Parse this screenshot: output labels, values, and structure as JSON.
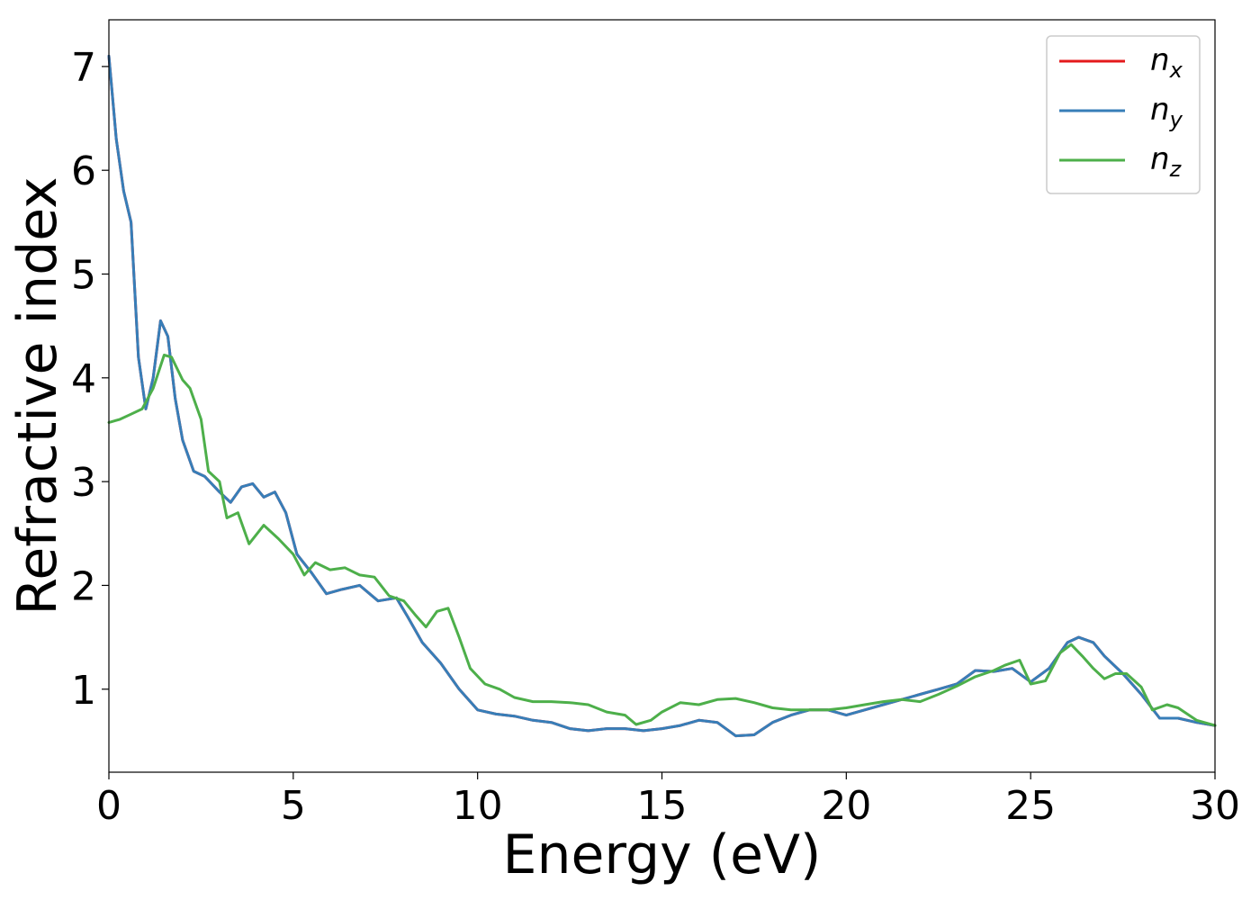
{
  "chart_data": {
    "type": "line",
    "title": "",
    "xlabel": "Energy (eV)",
    "ylabel": "Refractive index",
    "xlim": [
      0,
      30
    ],
    "ylim": [
      0.2,
      7.45
    ],
    "xticks": [
      0,
      5,
      10,
      15,
      20,
      25,
      30
    ],
    "yticks": [
      1,
      2,
      3,
      4,
      5,
      6,
      7
    ],
    "grid": false,
    "legend_position": "top-right",
    "series": [
      {
        "name": "n_x",
        "legend_main": "n",
        "legend_sub": "x",
        "color": "#e41a1c",
        "x": [
          0,
          0.2,
          0.4,
          0.6,
          0.8,
          1.0,
          1.2,
          1.4,
          1.6,
          1.8,
          2.0,
          2.3,
          2.6,
          3.0,
          3.3,
          3.6,
          3.9,
          4.2,
          4.5,
          4.8,
          5.1,
          5.5,
          5.9,
          6.3,
          6.8,
          7.3,
          7.8,
          8.1,
          8.5,
          9.0,
          9.5,
          10.0,
          10.5,
          11.0,
          11.5,
          12.0,
          12.5,
          13.0,
          13.5,
          14.0,
          14.5,
          15.0,
          15.5,
          16.0,
          16.5,
          17.0,
          17.5,
          18.0,
          18.5,
          19.0,
          19.5,
          20.0,
          20.5,
          21.0,
          21.5,
          22.0,
          22.5,
          23.0,
          23.5,
          24.0,
          24.5,
          25.0,
          25.5,
          26.0,
          26.3,
          26.7,
          27.0,
          27.5,
          28.0,
          28.5,
          29.0,
          29.5,
          30.0
        ],
        "y": [
          7.1,
          6.3,
          5.8,
          5.5,
          4.2,
          3.7,
          4.0,
          4.55,
          4.4,
          3.8,
          3.4,
          3.1,
          3.05,
          2.9,
          2.8,
          2.95,
          2.98,
          2.85,
          2.9,
          2.7,
          2.3,
          2.12,
          1.92,
          1.96,
          2.0,
          1.85,
          1.88,
          1.7,
          1.45,
          1.25,
          1.0,
          0.8,
          0.76,
          0.74,
          0.7,
          0.68,
          0.62,
          0.6,
          0.62,
          0.62,
          0.6,
          0.62,
          0.65,
          0.7,
          0.68,
          0.55,
          0.56,
          0.68,
          0.75,
          0.8,
          0.8,
          0.75,
          0.8,
          0.85,
          0.9,
          0.95,
          1.0,
          1.05,
          1.18,
          1.17,
          1.2,
          1.07,
          1.2,
          1.45,
          1.5,
          1.45,
          1.32,
          1.15,
          0.95,
          0.72,
          0.72,
          0.68,
          0.65
        ]
      },
      {
        "name": "n_y",
        "legend_main": "n",
        "legend_sub": "y",
        "color": "#377eb8",
        "x": [
          0,
          0.2,
          0.4,
          0.6,
          0.8,
          1.0,
          1.2,
          1.4,
          1.6,
          1.8,
          2.0,
          2.3,
          2.6,
          3.0,
          3.3,
          3.6,
          3.9,
          4.2,
          4.5,
          4.8,
          5.1,
          5.5,
          5.9,
          6.3,
          6.8,
          7.3,
          7.8,
          8.1,
          8.5,
          9.0,
          9.5,
          10.0,
          10.5,
          11.0,
          11.5,
          12.0,
          12.5,
          13.0,
          13.5,
          14.0,
          14.5,
          15.0,
          15.5,
          16.0,
          16.5,
          17.0,
          17.5,
          18.0,
          18.5,
          19.0,
          19.5,
          20.0,
          20.5,
          21.0,
          21.5,
          22.0,
          22.5,
          23.0,
          23.5,
          24.0,
          24.5,
          25.0,
          25.5,
          26.0,
          26.3,
          26.7,
          27.0,
          27.5,
          28.0,
          28.5,
          29.0,
          29.5,
          30.0
        ],
        "y": [
          7.1,
          6.3,
          5.8,
          5.5,
          4.2,
          3.7,
          4.0,
          4.55,
          4.4,
          3.8,
          3.4,
          3.1,
          3.05,
          2.9,
          2.8,
          2.95,
          2.98,
          2.85,
          2.9,
          2.7,
          2.3,
          2.12,
          1.92,
          1.96,
          2.0,
          1.85,
          1.88,
          1.7,
          1.45,
          1.25,
          1.0,
          0.8,
          0.76,
          0.74,
          0.7,
          0.68,
          0.62,
          0.6,
          0.62,
          0.62,
          0.6,
          0.62,
          0.65,
          0.7,
          0.68,
          0.55,
          0.56,
          0.68,
          0.75,
          0.8,
          0.8,
          0.75,
          0.8,
          0.85,
          0.9,
          0.95,
          1.0,
          1.05,
          1.18,
          1.17,
          1.2,
          1.07,
          1.2,
          1.45,
          1.5,
          1.45,
          1.32,
          1.15,
          0.95,
          0.72,
          0.72,
          0.68,
          0.65
        ]
      },
      {
        "name": "n_z",
        "legend_main": "n",
        "legend_sub": "z",
        "color": "#4daf4a",
        "x": [
          0,
          0.3,
          0.6,
          0.9,
          1.2,
          1.5,
          1.7,
          2.0,
          2.2,
          2.5,
          2.7,
          3.0,
          3.2,
          3.5,
          3.8,
          4.2,
          4.6,
          5.0,
          5.3,
          5.6,
          6.0,
          6.4,
          6.8,
          7.2,
          7.6,
          8.0,
          8.3,
          8.6,
          8.9,
          9.2,
          9.5,
          9.8,
          10.2,
          10.6,
          11.0,
          11.5,
          12.0,
          12.5,
          13.0,
          13.5,
          14.0,
          14.3,
          14.7,
          15.0,
          15.5,
          16.0,
          16.5,
          17.0,
          17.5,
          18.0,
          18.5,
          19.0,
          19.5,
          20.0,
          20.5,
          21.0,
          21.5,
          22.0,
          22.5,
          23.0,
          23.5,
          24.0,
          24.3,
          24.7,
          25.0,
          25.4,
          25.8,
          26.1,
          26.4,
          26.7,
          27.0,
          27.3,
          27.6,
          28.0,
          28.3,
          28.7,
          29.0,
          29.5,
          30.0
        ],
        "y": [
          3.57,
          3.6,
          3.65,
          3.7,
          3.9,
          4.22,
          4.2,
          3.98,
          3.9,
          3.6,
          3.1,
          3.0,
          2.65,
          2.7,
          2.4,
          2.58,
          2.45,
          2.3,
          2.1,
          2.22,
          2.15,
          2.17,
          2.1,
          2.08,
          1.9,
          1.85,
          1.72,
          1.6,
          1.75,
          1.78,
          1.5,
          1.2,
          1.05,
          1.0,
          0.92,
          0.88,
          0.88,
          0.87,
          0.85,
          0.78,
          0.75,
          0.66,
          0.7,
          0.78,
          0.87,
          0.85,
          0.9,
          0.91,
          0.87,
          0.82,
          0.8,
          0.8,
          0.8,
          0.82,
          0.85,
          0.88,
          0.9,
          0.88,
          0.95,
          1.03,
          1.12,
          1.18,
          1.23,
          1.28,
          1.05,
          1.08,
          1.35,
          1.43,
          1.32,
          1.2,
          1.1,
          1.15,
          1.15,
          1.02,
          0.8,
          0.85,
          0.82,
          0.7,
          0.65
        ]
      }
    ]
  }
}
